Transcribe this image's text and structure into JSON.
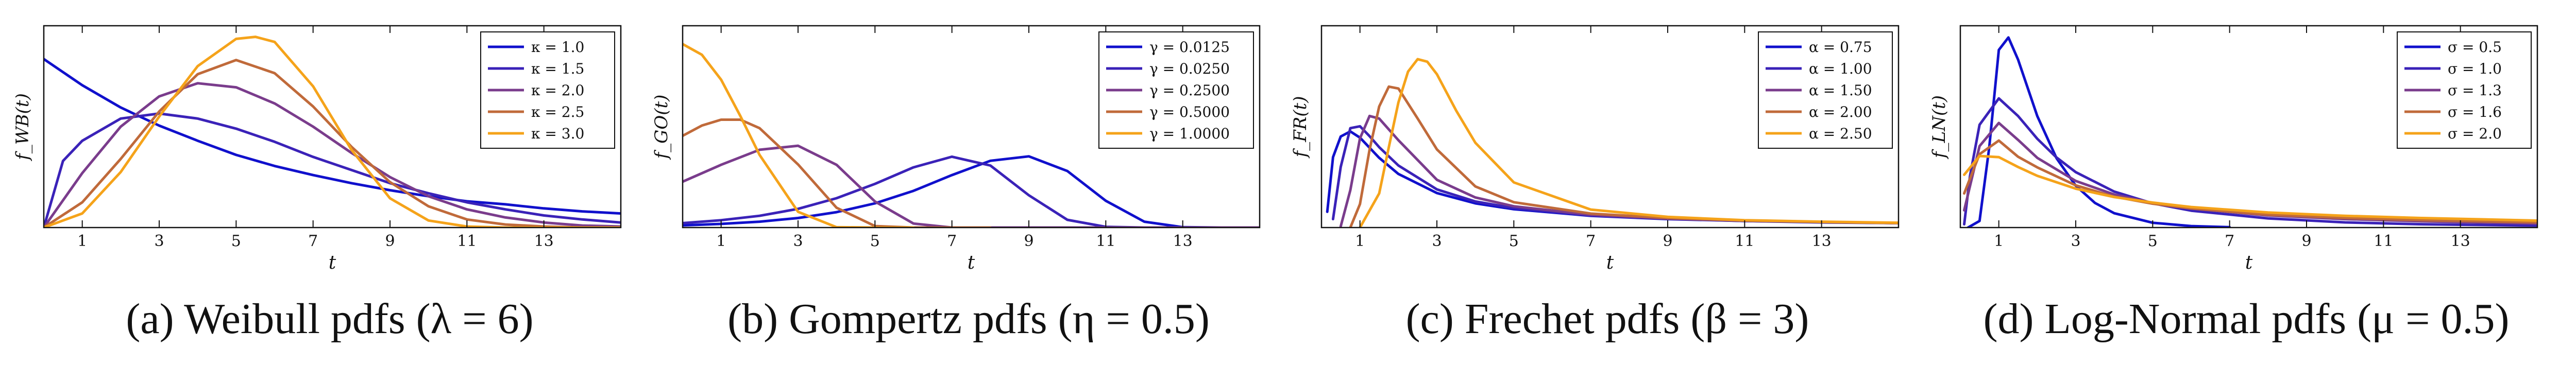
{
  "chart_data": [
    {
      "type": "line",
      "caption": "(a) Weibull pdfs (λ = 6)",
      "ylabel": "f_WB(t)",
      "xlabel": "t",
      "xticks": [
        1,
        3,
        5,
        7,
        9,
        11,
        13
      ],
      "xlim": [
        0,
        15
      ],
      "ylim": [
        0,
        0.2
      ],
      "legend": "top-right",
      "series": [
        {
          "name": "κ = 1.0",
          "color": "#1010cc",
          "x": [
            0,
            1,
            2,
            3,
            4,
            5,
            6,
            7,
            8,
            9,
            10,
            11,
            12,
            13,
            14,
            15
          ],
          "y": [
            0.167,
            0.141,
            0.119,
            0.101,
            0.086,
            0.072,
            0.061,
            0.052,
            0.044,
            0.037,
            0.031,
            0.026,
            0.023,
            0.019,
            0.016,
            0.014
          ]
        },
        {
          "name": "κ = 1.5",
          "color": "#3a22b8",
          "x": [
            0,
            0.5,
            1,
            2,
            3,
            4,
            5,
            6,
            7,
            8,
            9,
            10,
            11,
            12,
            13,
            14,
            15
          ],
          "y": [
            0,
            0.066,
            0.086,
            0.108,
            0.113,
            0.108,
            0.098,
            0.085,
            0.07,
            0.057,
            0.044,
            0.034,
            0.025,
            0.018,
            0.012,
            0.008,
            0.005
          ]
        },
        {
          "name": "κ = 2.0",
          "color": "#7a3c8c",
          "x": [
            0,
            1,
            2,
            3,
            4,
            5,
            6,
            7,
            8,
            9,
            10,
            11,
            12,
            13,
            14,
            15
          ],
          "y": [
            0,
            0.054,
            0.1,
            0.13,
            0.143,
            0.139,
            0.123,
            0.1,
            0.074,
            0.05,
            0.031,
            0.018,
            0.01,
            0.005,
            0.002,
            0.001
          ]
        },
        {
          "name": "κ = 2.5",
          "color": "#c06a3a",
          "x": [
            0,
            1,
            2,
            3,
            4,
            5,
            6,
            7,
            8,
            9,
            10,
            11,
            12,
            13,
            14,
            15
          ],
          "y": [
            0,
            0.025,
            0.068,
            0.115,
            0.152,
            0.166,
            0.153,
            0.12,
            0.08,
            0.045,
            0.021,
            0.008,
            0.003,
            0.001,
            0,
            0
          ]
        },
        {
          "name": "κ = 3.0",
          "color": "#f5a31a",
          "x": [
            0,
            1,
            2,
            3,
            4,
            5,
            5.5,
            6,
            7,
            8,
            9,
            10,
            11,
            12,
            13,
            14,
            15
          ],
          "y": [
            0,
            0.014,
            0.055,
            0.11,
            0.16,
            0.187,
            0.189,
            0.184,
            0.14,
            0.077,
            0.029,
            0.007,
            0.001,
            0,
            0,
            0,
            0
          ]
        }
      ]
    },
    {
      "type": "line",
      "caption": "(b) Gompertz pdfs (η = 0.5)",
      "ylabel": "f_GO(t)",
      "xlabel": "t",
      "xticks": [
        1,
        3,
        5,
        7,
        9,
        11,
        13
      ],
      "xlim": [
        0,
        15
      ],
      "ylim": [
        0,
        0.55
      ],
      "legend": "top-right",
      "series": [
        {
          "name": "γ = 0.0125",
          "color": "#1010cc",
          "x": [
            0,
            1,
            2,
            3,
            4,
            5,
            6,
            7,
            8,
            9,
            10,
            11,
            12,
            13,
            14,
            15
          ],
          "y": [
            0.006,
            0.01,
            0.016,
            0.026,
            0.042,
            0.066,
            0.1,
            0.143,
            0.182,
            0.194,
            0.154,
            0.073,
            0.016,
            0.001,
            0,
            0
          ]
        },
        {
          "name": "γ = 0.0250",
          "color": "#3a22b8",
          "x": [
            0,
            1,
            2,
            3,
            4,
            5,
            6,
            7,
            8,
            9,
            10,
            11,
            12,
            13,
            14,
            15
          ],
          "y": [
            0.012,
            0.02,
            0.032,
            0.051,
            0.08,
            0.119,
            0.164,
            0.193,
            0.169,
            0.088,
            0.021,
            0.002,
            0,
            0,
            0,
            0
          ]
        },
        {
          "name": "γ = 0.2500",
          "color": "#7a3c8c",
          "x": [
            0,
            1,
            2,
            3,
            4,
            5,
            6,
            7,
            8,
            9,
            10,
            11,
            12,
            13,
            14,
            15
          ],
          "y": [
            0.125,
            0.171,
            0.212,
            0.223,
            0.171,
            0.071,
            0.011,
            0,
            0,
            0,
            0,
            0,
            0,
            0,
            0,
            0
          ]
        },
        {
          "name": "γ = 0.5000",
          "color": "#c06a3a",
          "x": [
            0,
            0.5,
            1,
            1.5,
            2,
            3,
            4,
            5,
            6,
            7,
            8
          ],
          "y": [
            0.25,
            0.278,
            0.294,
            0.294,
            0.271,
            0.172,
            0.054,
            0.004,
            0,
            0,
            0
          ]
        },
        {
          "name": "γ = 1.0000",
          "color": "#f5a31a",
          "x": [
            0,
            0.5,
            1,
            1.5,
            2,
            3,
            4,
            5,
            6
          ],
          "y": [
            0.5,
            0.471,
            0.403,
            0.304,
            0.198,
            0.043,
            0.001,
            0,
            0
          ]
        }
      ]
    },
    {
      "type": "line",
      "caption": "(c) Frechet pdfs (β = 3)",
      "ylabel": "f_FR(t)",
      "xlabel": "t",
      "xticks": [
        1,
        3,
        5,
        7,
        9,
        11,
        13
      ],
      "xlim": [
        0,
        15
      ],
      "ylim": [
        0,
        0.55
      ],
      "legend": "top-right",
      "series": [
        {
          "name": "α = 0.75",
          "color": "#1010cc",
          "x": [
            0.15,
            0.3,
            0.5,
            0.75,
            1,
            1.5,
            2,
            3,
            4,
            5,
            7,
            9,
            11,
            13,
            15
          ],
          "y": [
            0.043,
            0.192,
            0.248,
            0.262,
            0.245,
            0.19,
            0.146,
            0.094,
            0.066,
            0.05,
            0.032,
            0.023,
            0.018,
            0.014,
            0.012
          ]
        },
        {
          "name": "α = 1.00",
          "color": "#3a22b8",
          "x": [
            0.3,
            0.5,
            0.75,
            1,
            1.25,
            1.5,
            2,
            3,
            4,
            5,
            7,
            9,
            11,
            13,
            15
          ],
          "y": [
            0.023,
            0.165,
            0.271,
            0.276,
            0.249,
            0.219,
            0.169,
            0.104,
            0.071,
            0.053,
            0.033,
            0.024,
            0.018,
            0.015,
            0.012
          ]
        },
        {
          "name": "α = 1.50",
          "color": "#7a3c8c",
          "x": [
            0.5,
            0.75,
            1,
            1.25,
            1.5,
            2,
            3,
            4,
            5,
            7,
            9,
            11,
            13,
            15
          ],
          "y": [
            0.003,
            0.102,
            0.243,
            0.304,
            0.297,
            0.238,
            0.13,
            0.082,
            0.058,
            0.035,
            0.024,
            0.019,
            0.015,
            0.012
          ]
        },
        {
          "name": "α = 2.00",
          "color": "#c06a3a",
          "x": [
            0.75,
            1,
            1.25,
            1.5,
            1.75,
            2,
            2.5,
            3,
            4,
            5,
            7,
            9,
            11,
            13,
            15
          ],
          "y": [
            0.0,
            0.064,
            0.212,
            0.33,
            0.384,
            0.379,
            0.297,
            0.213,
            0.112,
            0.069,
            0.038,
            0.026,
            0.019,
            0.015,
            0.012
          ]
        },
        {
          "name": "α = 2.50",
          "color": "#f5a31a",
          "x": [
            1,
            1.5,
            1.75,
            2,
            2.25,
            2.5,
            2.75,
            3,
            3.5,
            4,
            5,
            7,
            9,
            11,
            13,
            15
          ],
          "y": [
            0.0,
            0.093,
            0.219,
            0.341,
            0.425,
            0.459,
            0.452,
            0.418,
            0.319,
            0.231,
            0.123,
            0.049,
            0.029,
            0.02,
            0.016,
            0.013
          ]
        }
      ]
    },
    {
      "type": "line",
      "caption": "(d) Log-Normal pdfs (μ = 0.5)",
      "ylabel": "f_LN(t)",
      "xlabel": "t",
      "xticks": [
        1,
        3,
        5,
        7,
        9,
        11,
        13
      ],
      "xlim": [
        0,
        15
      ],
      "ylim": [
        0,
        0.55
      ],
      "legend": "top-right",
      "series": [
        {
          "name": "σ = 0.5",
          "color": "#1010cc",
          "x": [
            0.2,
            0.5,
            0.75,
            1,
            1.25,
            1.5,
            2,
            2.5,
            3,
            3.5,
            4,
            5,
            6,
            7
          ],
          "y": [
            0.0,
            0.018,
            0.217,
            0.484,
            0.518,
            0.458,
            0.304,
            0.189,
            0.114,
            0.067,
            0.039,
            0.013,
            0.004,
            0.001
          ]
        },
        {
          "name": "σ = 1.0",
          "color": "#3a22b8",
          "x": [
            0.1,
            0.25,
            0.5,
            1,
            1.5,
            2,
            2.5,
            3,
            4,
            5,
            6,
            8,
            10,
            12,
            15
          ],
          "y": [
            0.009,
            0.14,
            0.28,
            0.352,
            0.304,
            0.242,
            0.191,
            0.151,
            0.098,
            0.066,
            0.046,
            0.025,
            0.014,
            0.009,
            0.005
          ]
        },
        {
          "name": "σ = 1.3",
          "color": "#7a3c8c",
          "x": [
            0.1,
            0.5,
            1,
            1.5,
            2,
            3,
            4,
            5,
            6,
            8,
            10,
            12,
            15
          ],
          "y": [
            0.047,
            0.222,
            0.285,
            0.239,
            0.19,
            0.127,
            0.09,
            0.067,
            0.052,
            0.033,
            0.023,
            0.017,
            0.011
          ]
        },
        {
          "name": "σ = 1.6",
          "color": "#c06a3a",
          "x": [
            0.1,
            0.5,
            1,
            1.5,
            2,
            3,
            4,
            5,
            6,
            8,
            10,
            12,
            15
          ],
          "y": [
            0.093,
            0.2,
            0.237,
            0.193,
            0.164,
            0.115,
            0.084,
            0.065,
            0.052,
            0.035,
            0.026,
            0.02,
            0.014
          ]
        },
        {
          "name": "σ = 2.0",
          "color": "#f5a31a",
          "x": [
            0.1,
            0.5,
            1,
            1.5,
            2,
            3,
            4,
            5,
            6,
            8,
            10,
            12,
            15
          ],
          "y": [
            0.144,
            0.195,
            0.192,
            0.165,
            0.141,
            0.106,
            0.083,
            0.068,
            0.056,
            0.041,
            0.032,
            0.026,
            0.019
          ]
        }
      ]
    }
  ]
}
